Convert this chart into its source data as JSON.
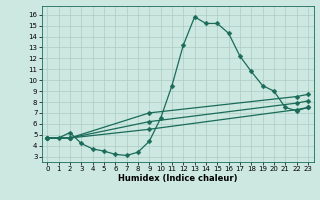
{
  "xlabel": "Humidex (Indice chaleur)",
  "xlim": [
    -0.5,
    23.5
  ],
  "ylim": [
    2.5,
    16.8
  ],
  "yticks": [
    3,
    4,
    5,
    6,
    7,
    8,
    9,
    10,
    11,
    12,
    13,
    14,
    15,
    16
  ],
  "xticks": [
    0,
    1,
    2,
    3,
    4,
    5,
    6,
    7,
    8,
    9,
    10,
    11,
    12,
    13,
    14,
    15,
    16,
    17,
    18,
    19,
    20,
    21,
    22,
    23
  ],
  "bg_color": "#cce8e0",
  "line_color": "#1a6b5a",
  "grid_color": "#aaccc4",
  "curve_x": [
    0,
    1,
    2,
    3,
    4,
    5,
    6,
    7,
    8,
    9,
    10,
    11,
    12,
    13,
    14,
    15,
    16,
    17,
    18,
    19,
    20,
    21,
    22,
    23
  ],
  "curve_y": [
    4.7,
    4.7,
    5.2,
    4.2,
    3.7,
    3.5,
    3.2,
    3.1,
    3.4,
    4.4,
    6.5,
    9.5,
    13.2,
    15.8,
    15.2,
    15.2,
    14.3,
    12.2,
    10.8,
    9.5,
    9.0,
    7.5,
    7.2,
    7.5
  ],
  "line2_x": [
    0,
    2,
    9,
    22,
    23
  ],
  "line2_y": [
    4.7,
    4.7,
    5.5,
    7.3,
    7.5
  ],
  "line3_x": [
    0,
    2,
    9,
    22,
    23
  ],
  "line3_y": [
    4.7,
    4.7,
    6.2,
    7.9,
    8.1
  ],
  "line4_x": [
    0,
    2,
    9,
    22,
    23
  ],
  "line4_y": [
    4.7,
    4.7,
    7.0,
    8.5,
    8.7
  ],
  "markersize": 2.5,
  "linewidth": 0.9
}
